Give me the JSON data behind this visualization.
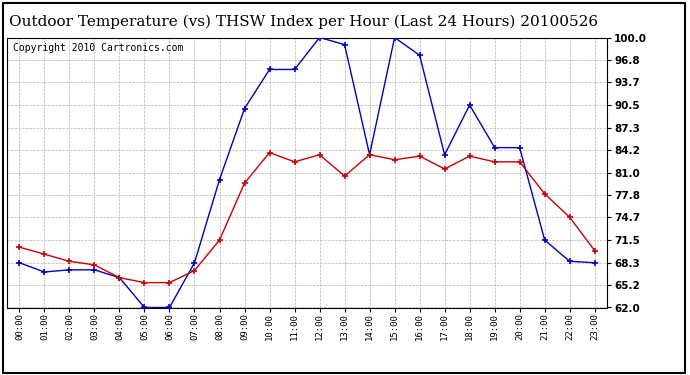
{
  "title": "Outdoor Temperature (vs) THSW Index per Hour (Last 24 Hours) 20100526",
  "copyright": "Copyright 2010 Cartronics.com",
  "hours": [
    "00:00",
    "01:00",
    "02:00",
    "03:00",
    "04:00",
    "05:00",
    "06:00",
    "07:00",
    "08:00",
    "09:00",
    "10:00",
    "11:00",
    "12:00",
    "13:00",
    "14:00",
    "15:00",
    "16:00",
    "17:00",
    "18:00",
    "19:00",
    "20:00",
    "21:00",
    "22:00",
    "23:00"
  ],
  "temp": [
    70.5,
    69.5,
    68.5,
    68.0,
    66.2,
    65.5,
    65.5,
    67.2,
    71.5,
    79.5,
    83.8,
    82.5,
    83.5,
    80.5,
    83.5,
    82.8,
    83.3,
    81.5,
    83.3,
    82.5,
    82.5,
    78.0,
    74.7,
    70.0
  ],
  "thsw": [
    68.3,
    67.0,
    67.3,
    67.3,
    66.2,
    62.0,
    62.0,
    68.3,
    80.0,
    90.0,
    95.5,
    95.5,
    100.0,
    99.0,
    83.5,
    100.0,
    97.5,
    83.5,
    90.5,
    84.5,
    84.5,
    71.5,
    68.5,
    68.3
  ],
  "temp_color": "#cc0000",
  "thsw_color": "#0000cc",
  "bg_color": "#ffffff",
  "grid_color": "#aaaaaa",
  "ylim": [
    62.0,
    100.0
  ],
  "yticks": [
    62.0,
    65.2,
    68.3,
    71.5,
    74.7,
    77.8,
    81.0,
    84.2,
    87.3,
    90.5,
    93.7,
    96.8,
    100.0
  ],
  "title_fontsize": 11,
  "copyright_fontsize": 7
}
